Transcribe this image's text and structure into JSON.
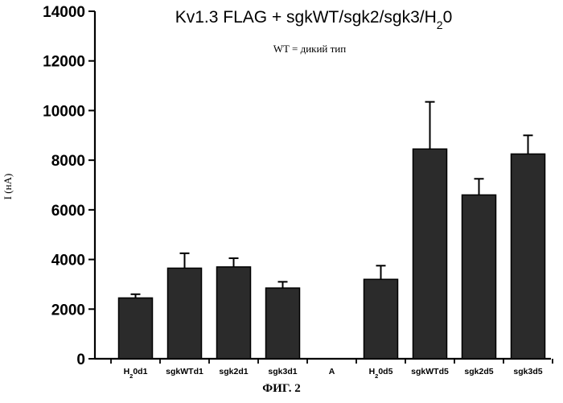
{
  "chart_data": {
    "type": "bar",
    "title": "Kv1.3 FLAG + sgkWT/sgk2/sgk3/H",
    "title_subscript": "2",
    "title_tail": "0",
    "subtitle": "WT = дикий тип",
    "ylabel": "I (нА)",
    "xlabel": "",
    "caption": "ФИГ. 2",
    "ylim": [
      0,
      14000
    ],
    "yticks": [
      0,
      2000,
      4000,
      6000,
      8000,
      10000,
      12000,
      14000
    ],
    "grid": false,
    "legend": "none",
    "bar_color": "#2b2b2b",
    "categories": [
      "H2Od1",
      "sgkWTd1",
      "sgk2d1",
      "sgk3d1",
      "A",
      "H2Od5",
      "sgkWTd5",
      "sgk2d5",
      "sgk3d5"
    ],
    "values": [
      2450,
      3650,
      3700,
      2850,
      null,
      3200,
      8450,
      6600,
      8250
    ],
    "error_upper": [
      150,
      600,
      350,
      250,
      null,
      550,
      1900,
      650,
      750
    ]
  }
}
